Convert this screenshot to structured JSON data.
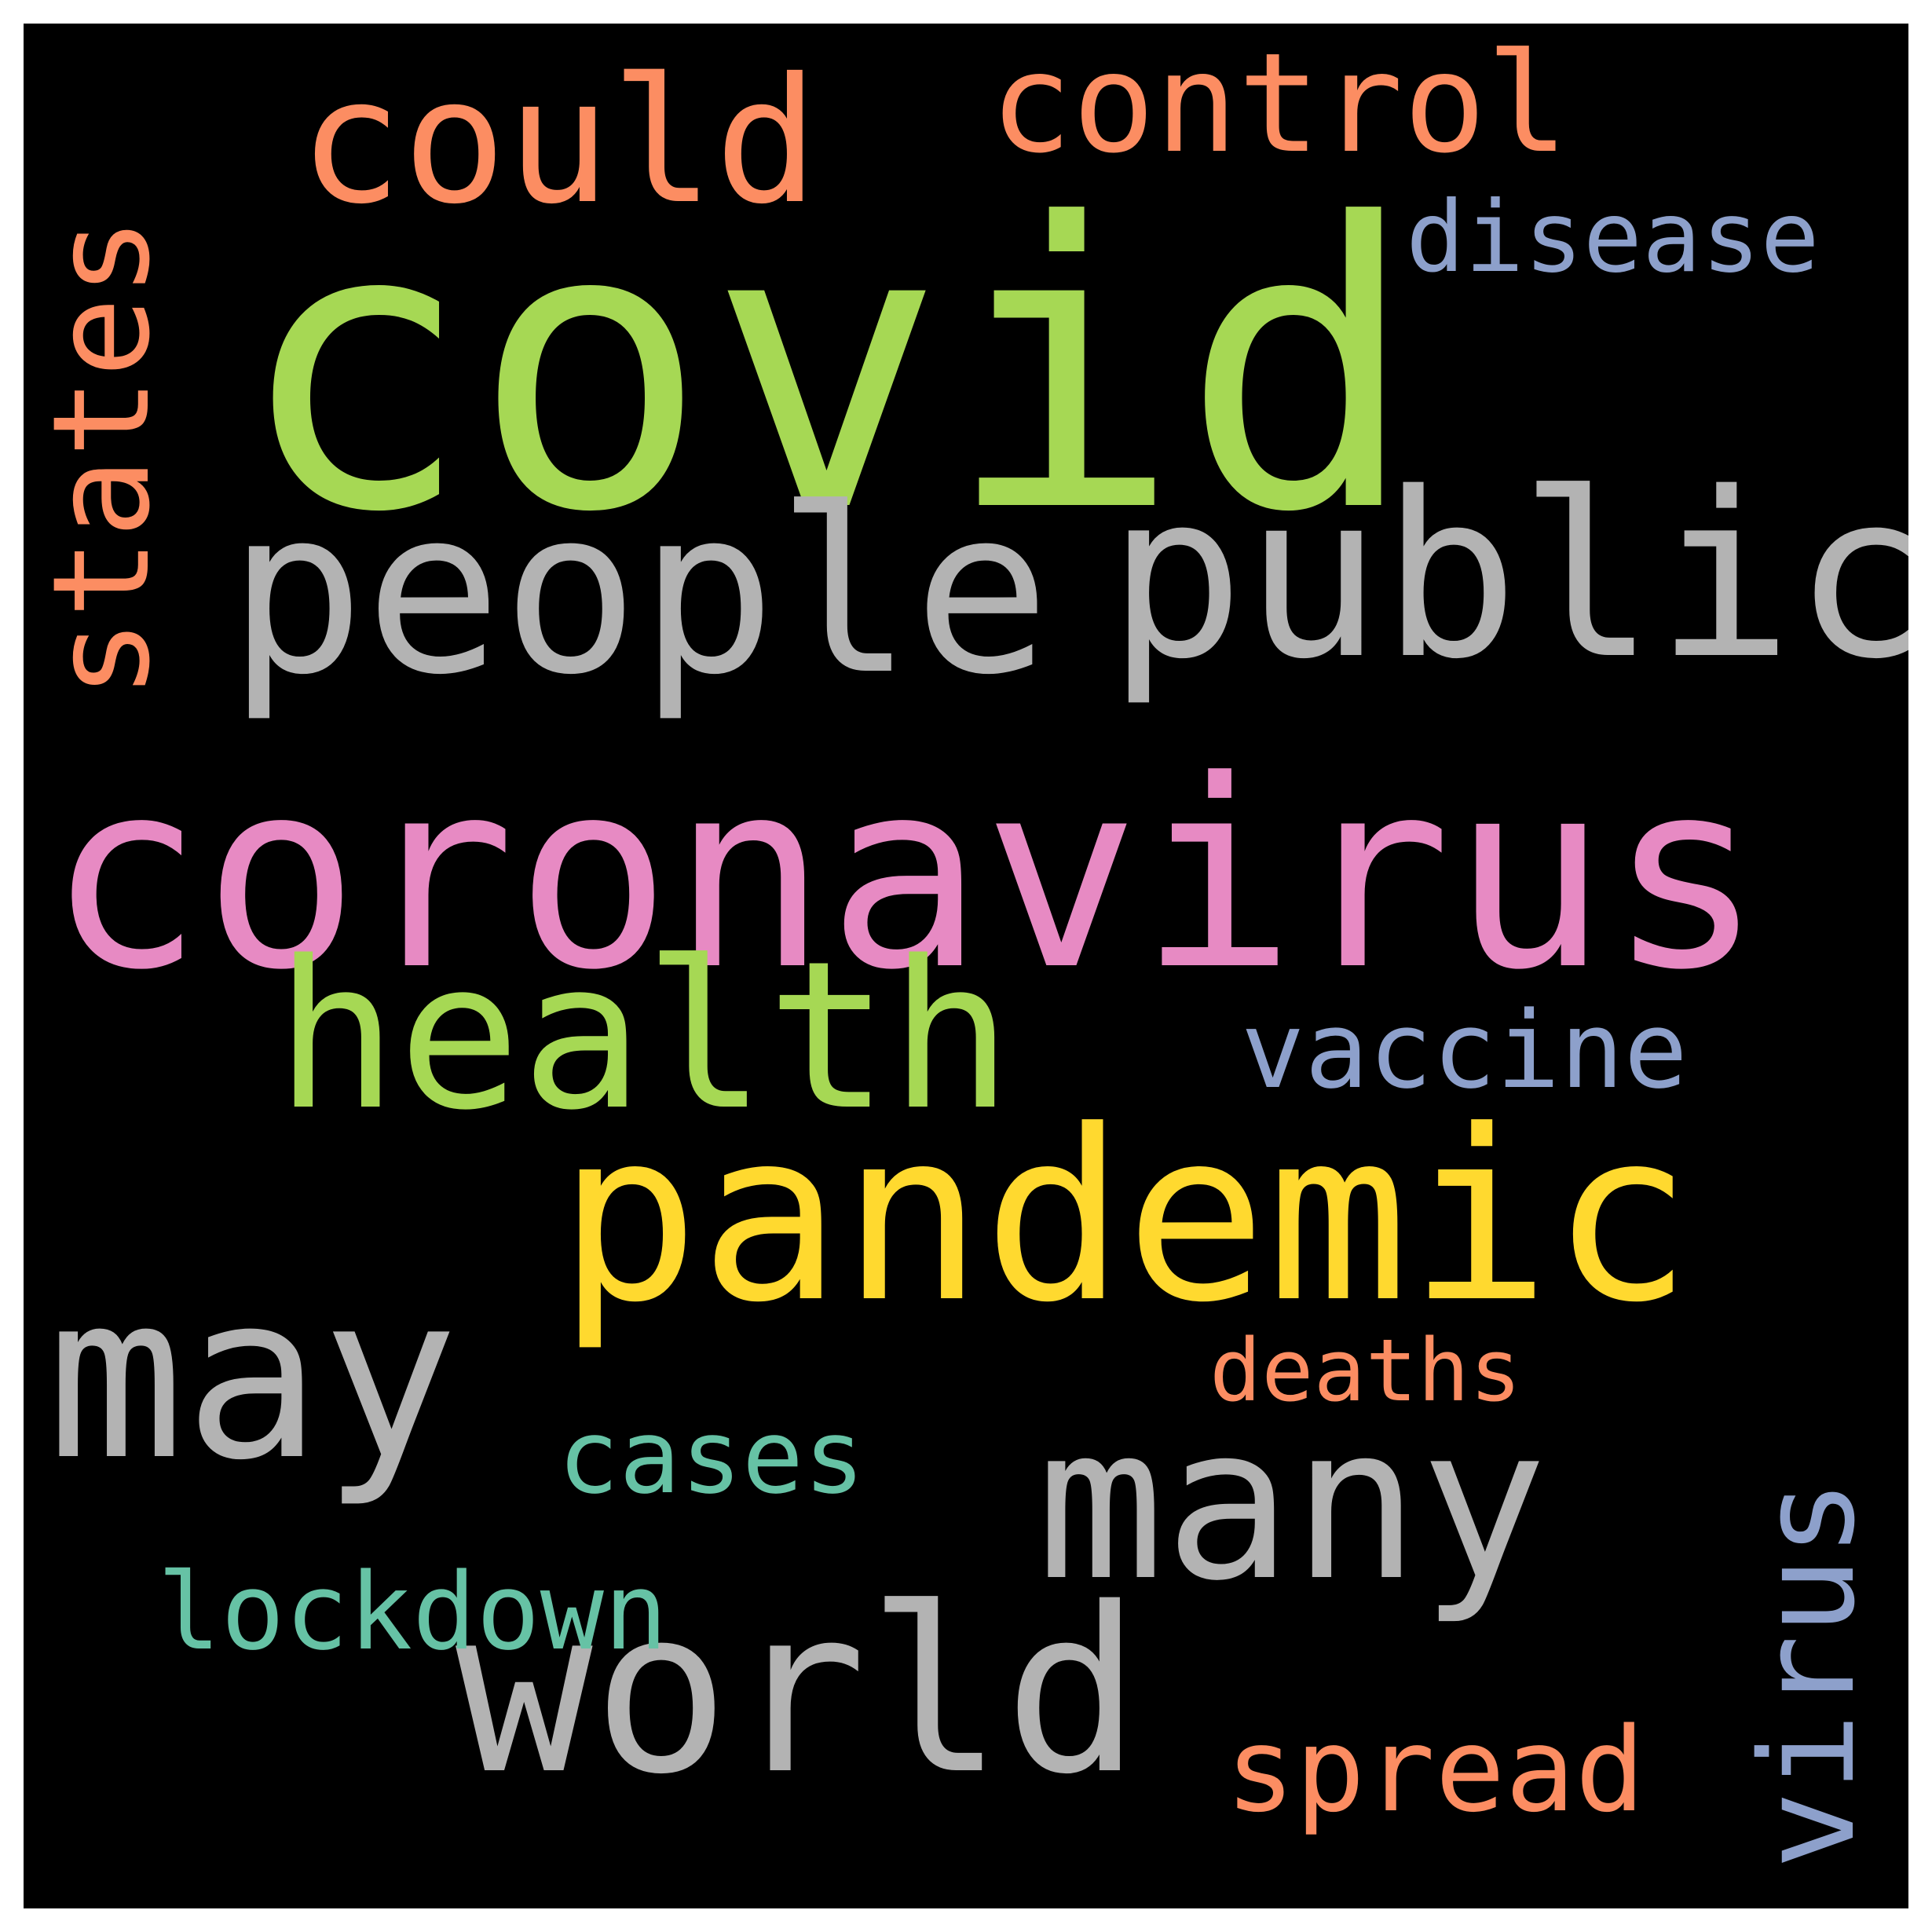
{
  "words": [
    {
      "key": "covid",
      "text": "covid",
      "color": "#a6d854"
    },
    {
      "key": "coronavirus",
      "text": "coronavirus",
      "color": "#e78ac3"
    },
    {
      "key": "people",
      "text": "people",
      "color": "#b3b3b3"
    },
    {
      "key": "public",
      "text": "public",
      "color": "#b3b3b3"
    },
    {
      "key": "pandemic",
      "text": "pandemic",
      "color": "#ffd92f"
    },
    {
      "key": "health",
      "text": "health",
      "color": "#a6d854"
    },
    {
      "key": "may",
      "text": "may",
      "color": "#b3b3b3"
    },
    {
      "key": "many",
      "text": "many",
      "color": "#b3b3b3"
    },
    {
      "key": "world",
      "text": "world",
      "color": "#b3b3b3"
    },
    {
      "key": "could",
      "text": "could",
      "color": "#fc8d62"
    },
    {
      "key": "states",
      "text": "states",
      "color": "#fc8d62"
    },
    {
      "key": "control",
      "text": "control",
      "color": "#fc8d62"
    },
    {
      "key": "disease",
      "text": "disease",
      "color": "#8da0cb"
    },
    {
      "key": "vaccine",
      "text": "vaccine",
      "color": "#8da0cb"
    },
    {
      "key": "virus",
      "text": "virus",
      "color": "#8da0cb"
    },
    {
      "key": "cases",
      "text": "cases",
      "color": "#66c2a5"
    },
    {
      "key": "lockdown",
      "text": "lockdown",
      "color": "#66c2a5"
    },
    {
      "key": "deaths",
      "text": "deaths",
      "color": "#fc8d62"
    },
    {
      "key": "spread",
      "text": "spread",
      "color": "#fc8d62"
    }
  ]
}
